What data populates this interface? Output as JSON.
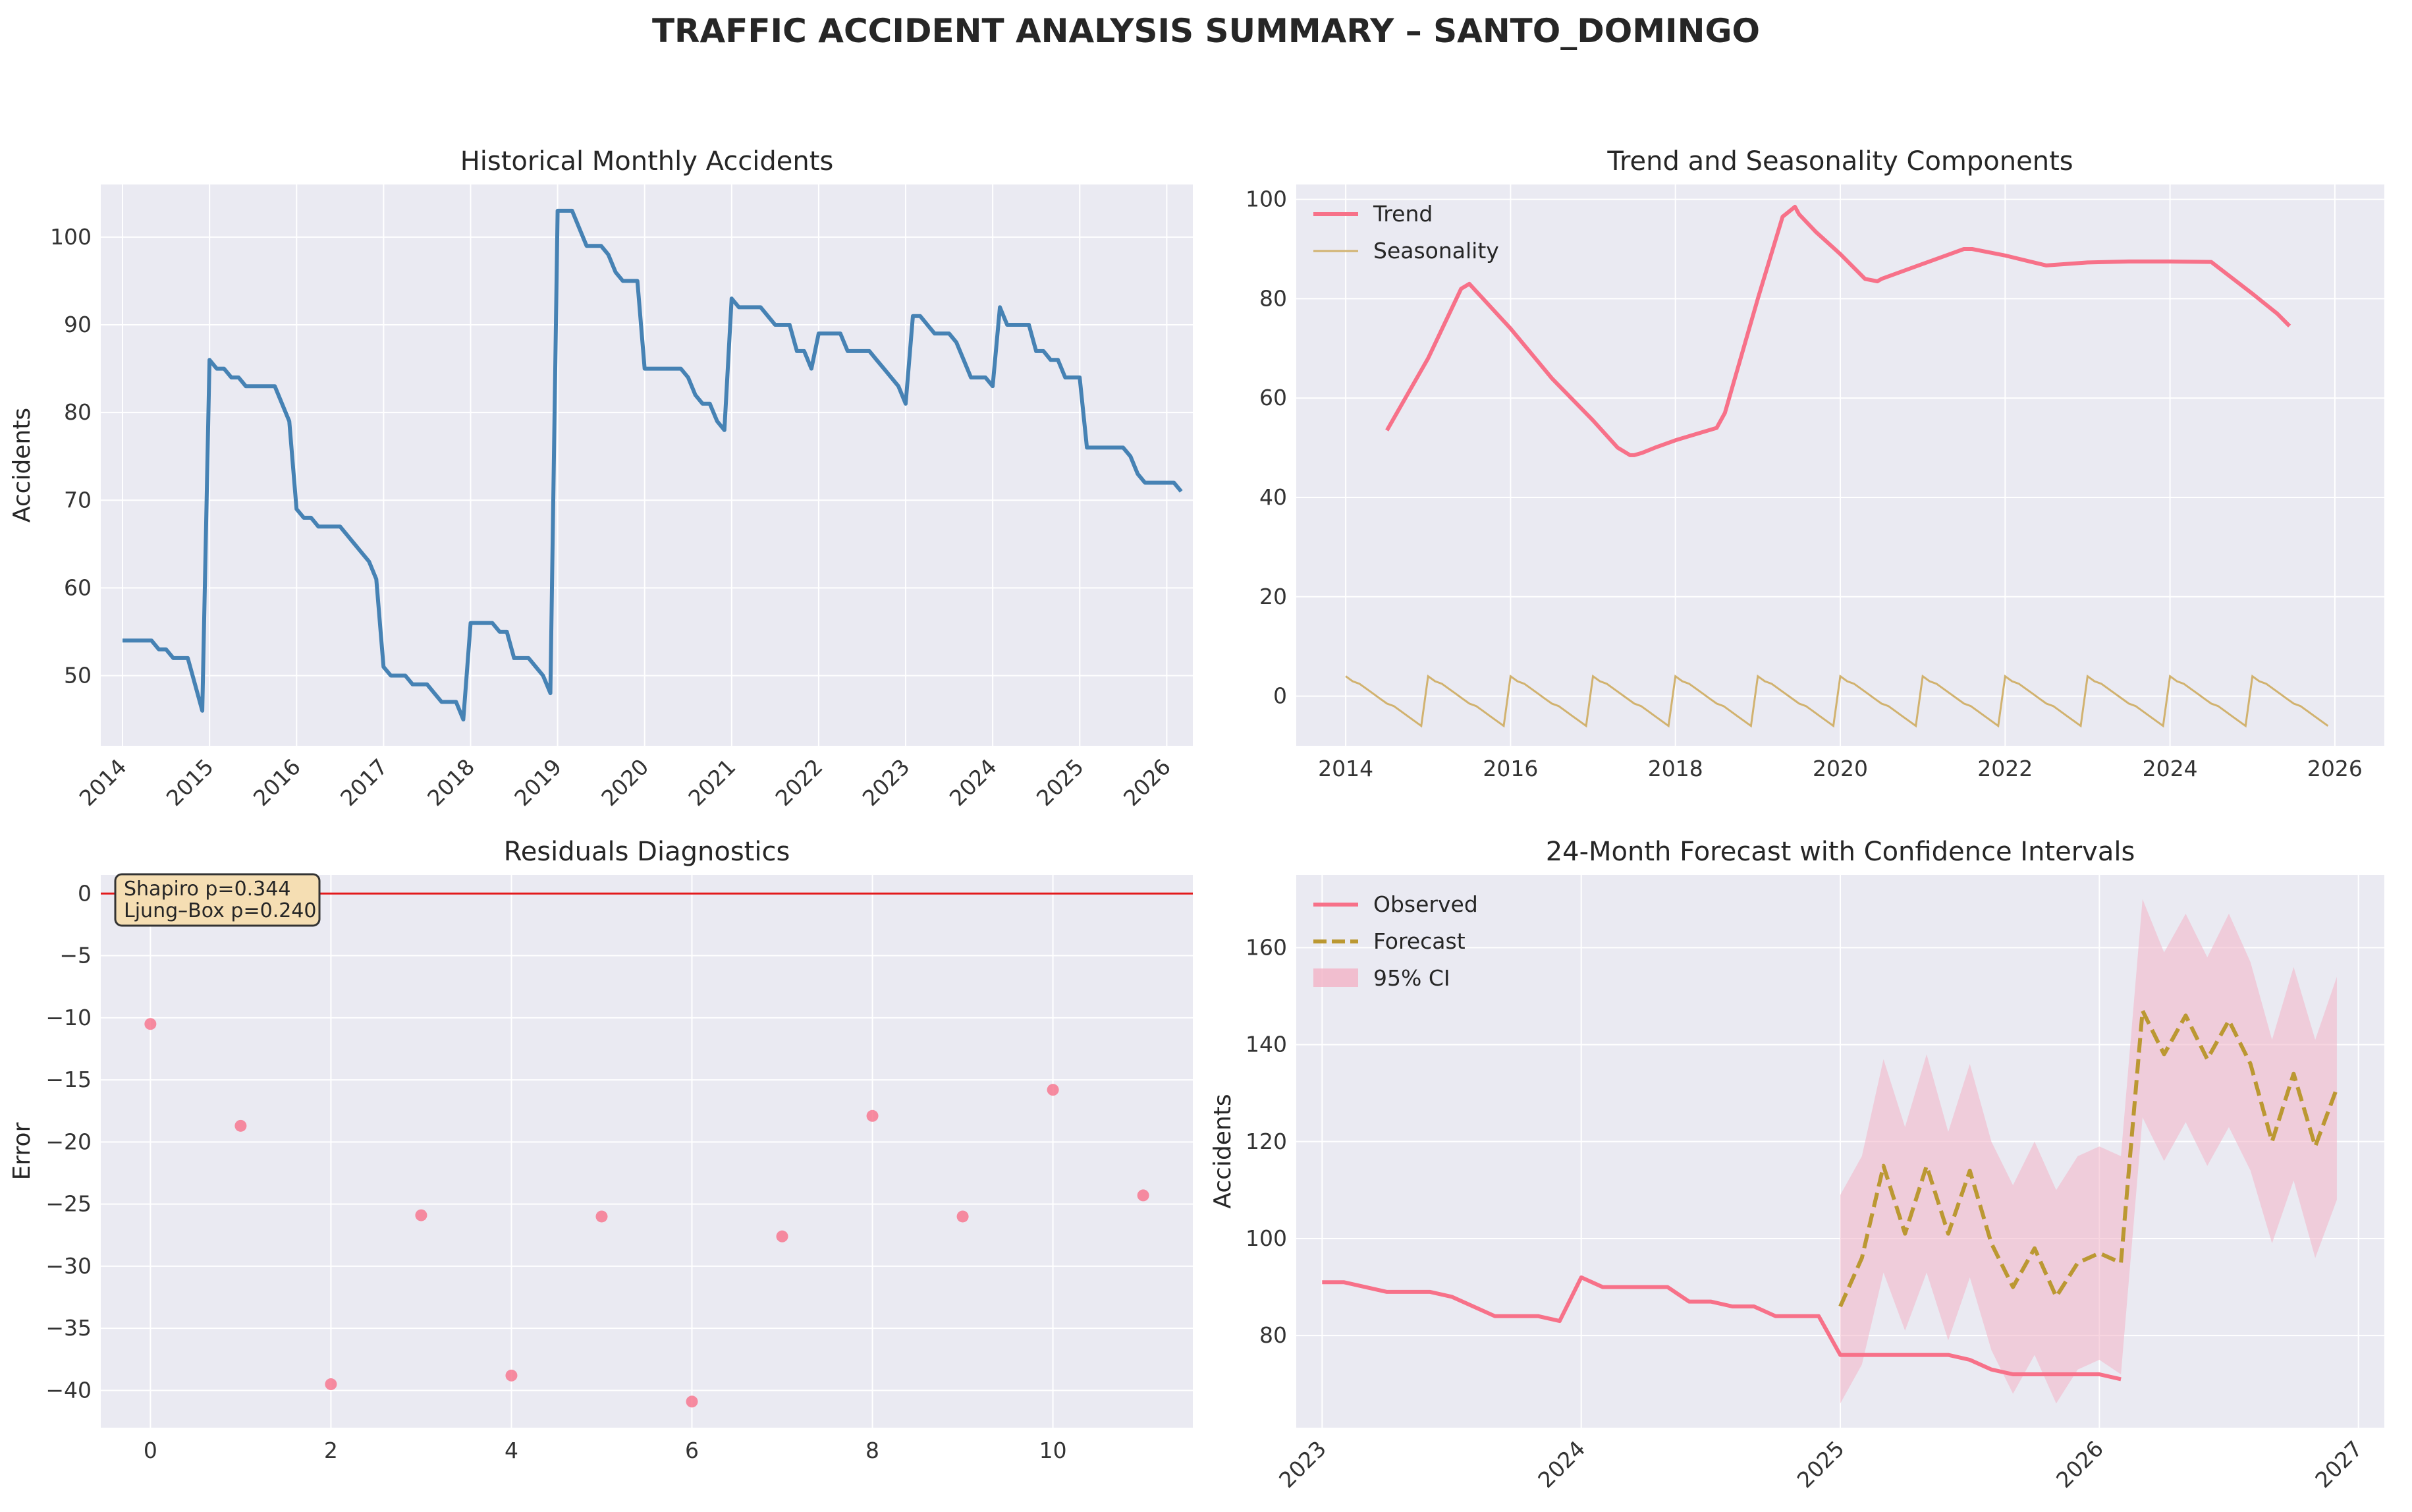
{
  "figure": {
    "title": "TRAFFIC ACCIDENT ANALYSIS SUMMARY – SANTO_DOMINGO"
  },
  "colors": {
    "background": "#eaeaf2",
    "grid": "#ffffff",
    "historical": "#4682b4",
    "trend": "#f77189",
    "seasonality": "#d1b26f",
    "residual_points": "#f77189",
    "zero_line": "#e31a1c",
    "observed": "#f77189",
    "forecast": "#bb9832",
    "ci": "#f2b3c6",
    "annot_box": "#f5deb3"
  },
  "chart_data": [
    {
      "id": "historical",
      "type": "line",
      "title": "Historical Monthly Accidents",
      "xlabel": "",
      "ylabel": "Accidents",
      "xlim": [
        2013.75,
        2026.3
      ],
      "ylim": [
        42,
        106
      ],
      "xticks": [
        2014,
        2015,
        2016,
        2017,
        2018,
        2019,
        2020,
        2021,
        2022,
        2023,
        2024,
        2025,
        2026
      ],
      "yticks": [
        50,
        60,
        70,
        80,
        90,
        100
      ],
      "x_start": 2014.0,
      "x_step": 0.08333,
      "series": [
        {
          "values": [
            54,
            54,
            54,
            54,
            54,
            53,
            53,
            52,
            52,
            52,
            49,
            46,
            86,
            85,
            85,
            84,
            84,
            83,
            83,
            83,
            83,
            83,
            81,
            79,
            69,
            68,
            68,
            67,
            67,
            67,
            67,
            66,
            65,
            64,
            63,
            61,
            51,
            50,
            50,
            50,
            49,
            49,
            49,
            48,
            47,
            47,
            47,
            45,
            56,
            56,
            56,
            56,
            55,
            55,
            52,
            52,
            52,
            51,
            50,
            48,
            103,
            103,
            103,
            101,
            99,
            99,
            99,
            98,
            96,
            95,
            95,
            95,
            85,
            85,
            85,
            85,
            85,
            85,
            84,
            82,
            81,
            81,
            79,
            78,
            93,
            92,
            92,
            92,
            92,
            91,
            90,
            90,
            90,
            87,
            87,
            85,
            89,
            89,
            89,
            89,
            87,
            87,
            87,
            87,
            86,
            85,
            84,
            83,
            81,
            91,
            91,
            90,
            89,
            89,
            89,
            88,
            86,
            84,
            84,
            84,
            83,
            92,
            90,
            90,
            90,
            90,
            87,
            87,
            86,
            86,
            84,
            84,
            84,
            76,
            76,
            76,
            76,
            76,
            76,
            75,
            73,
            72,
            72,
            72,
            72,
            72,
            71
          ]
        }
      ]
    },
    {
      "id": "decomposition",
      "type": "line",
      "title": "Trend and Seasonality Components",
      "xlabel": "",
      "ylabel": "",
      "xlim": [
        2013.4,
        2026.6
      ],
      "ylim": [
        -10,
        103
      ],
      "xticks": [
        2014,
        2016,
        2018,
        2020,
        2022,
        2024,
        2026
      ],
      "yticks": [
        0,
        20,
        40,
        60,
        80,
        100
      ],
      "legend": "upper-left",
      "series": [
        {
          "name": "Trend",
          "x": [
            2014.5,
            2015.0,
            2015.4,
            2015.5,
            2016.0,
            2016.5,
            2017.0,
            2017.3,
            2017.45,
            2017.5,
            2017.6,
            2017.75,
            2018.0,
            2018.5,
            2018.6,
            2019.0,
            2019.3,
            2019.45,
            2019.5,
            2019.7,
            2020.0,
            2020.3,
            2020.45,
            2020.5,
            2021.0,
            2021.5,
            2021.6,
            2022.0,
            2022.3,
            2022.5,
            2023.0,
            2023.5,
            2024.0,
            2024.5,
            2025.0,
            2025.3,
            2025.45
          ],
          "values": [
            53.5,
            68,
            82,
            83,
            74,
            64,
            55.5,
            50,
            48.5,
            48.5,
            49,
            50,
            51.5,
            54,
            57,
            80,
            96.5,
            98.5,
            97,
            93.5,
            89,
            84,
            83.5,
            84,
            87,
            90,
            90,
            88.7,
            87.5,
            86.7,
            87.3,
            87.5,
            87.5,
            87.4,
            81,
            77,
            74.5
          ]
        },
        {
          "name": "Seasonality",
          "annual_pattern": [
            4,
            3,
            2.5,
            1.5,
            0.5,
            -0.5,
            -1.5,
            -2,
            -3,
            -4,
            -5,
            -6
          ],
          "x_start": 2014.0,
          "x_step": 0.08333,
          "months": 144
        }
      ]
    },
    {
      "id": "residuals",
      "type": "scatter",
      "title": "Residuals Diagnostics",
      "xlabel": "",
      "ylabel": "Error",
      "xlim": [
        -0.55,
        11.55
      ],
      "ylim": [
        -43,
        1.5
      ],
      "xticks": [
        0,
        2,
        4,
        6,
        8,
        10
      ],
      "yticks": [
        0,
        -5,
        -10,
        -15,
        -20,
        -25,
        -30,
        -35,
        -40
      ],
      "reference_line": 0,
      "annotation": [
        "Shapiro p=0.344",
        "Ljung–Box p=0.240"
      ],
      "x": [
        0,
        1,
        2,
        3,
        4,
        5,
        6,
        7,
        8,
        9,
        10,
        11
      ],
      "values": [
        -10.5,
        -18.7,
        -39.5,
        -25.9,
        -38.8,
        -26.0,
        -40.9,
        -27.6,
        -17.9,
        -26.0,
        -15.8,
        -24.3
      ]
    },
    {
      "id": "forecast",
      "type": "line",
      "title": "24-Month Forecast with Confidence Intervals",
      "xlabel": "",
      "ylabel": "Accidents",
      "xlim": [
        2022.9,
        2027.1
      ],
      "ylim": [
        61,
        175
      ],
      "xticks": [
        2023,
        2024,
        2025,
        2026,
        2027
      ],
      "yticks": [
        80,
        100,
        120,
        140,
        160
      ],
      "legend": "upper-left",
      "series": [
        {
          "name": "Observed",
          "x_start": 2023.0,
          "x_step": 0.08333,
          "values": [
            91,
            91,
            90,
            89,
            89,
            89,
            88,
            86,
            84,
            84,
            84,
            83,
            92,
            90,
            90,
            90,
            90,
            87,
            87,
            86,
            86,
            84,
            84,
            84,
            76,
            76,
            76,
            76,
            76,
            76,
            75,
            73,
            72,
            72,
            72,
            72,
            72,
            71
          ]
        },
        {
          "name": "Forecast",
          "x_start": 2025.0,
          "x_step": 0.08333,
          "values": [
            86,
            96,
            115,
            101,
            115,
            101,
            114,
            99,
            90,
            98,
            88,
            95,
            97,
            95,
            147,
            138,
            146,
            137,
            145,
            136,
            120,
            134,
            119,
            131
          ]
        },
        {
          "name": "95% CI",
          "x_start": 2025.0,
          "x_step": 0.08333,
          "lower": [
            66,
            74,
            93,
            81,
            93,
            79,
            92,
            77,
            68,
            76,
            66,
            73,
            75,
            72,
            125,
            116,
            124,
            115,
            123,
            114,
            99,
            112,
            96,
            108
          ],
          "upper": [
            109,
            117,
            137,
            123,
            138,
            122,
            136,
            120,
            111,
            120,
            110,
            117,
            119,
            117,
            170,
            159,
            167,
            158,
            167,
            157,
            141,
            156,
            141,
            154
          ]
        }
      ]
    }
  ]
}
